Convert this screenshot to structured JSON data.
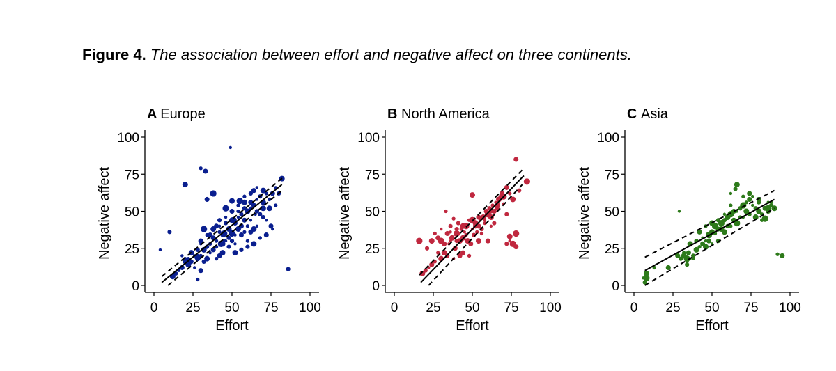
{
  "caption": {
    "label": "Figure 4.",
    "text": "The association between effort and negative affect on three continents."
  },
  "colors": {
    "Europe": "#0a1f8f",
    "North America": "#c0283f",
    "Asia": "#2d7a1a"
  },
  "chart_data": [
    {
      "type": "scatter",
      "panel_letter": "A",
      "title": "Europe",
      "xlabel": "Effort",
      "ylabel": "Negative affect",
      "xlim": [
        0,
        100
      ],
      "ylim": [
        0,
        100
      ],
      "xticks": [
        0,
        25,
        50,
        75,
        100
      ],
      "yticks": [
        0,
        25,
        50,
        75,
        100
      ],
      "fit_line": {
        "x": [
          5,
          82
        ],
        "y": [
          2,
          68
        ]
      },
      "ci_upper": {
        "x": [
          5,
          83
        ],
        "y": [
          6,
          73
        ]
      },
      "ci_lower": {
        "x": [
          9,
          82
        ],
        "y": [
          0,
          64
        ]
      },
      "points": [
        [
          4,
          24
        ],
        [
          10,
          36
        ],
        [
          20,
          68
        ],
        [
          30,
          79
        ],
        [
          33,
          77
        ],
        [
          49,
          93
        ],
        [
          86,
          11
        ],
        [
          82,
          72
        ],
        [
          38,
          62
        ],
        [
          34,
          58
        ],
        [
          32,
          39
        ],
        [
          46,
          52
        ],
        [
          50,
          57
        ],
        [
          58,
          60
        ],
        [
          62,
          56
        ],
        [
          65,
          48
        ],
        [
          58,
          52
        ],
        [
          55,
          57
        ],
        [
          42,
          36
        ],
        [
          40,
          40
        ],
        [
          45,
          30
        ],
        [
          44,
          34
        ],
        [
          48,
          38
        ],
        [
          50,
          36
        ],
        [
          52,
          42
        ],
        [
          54,
          46
        ],
        [
          56,
          48
        ],
        [
          60,
          50
        ],
        [
          62,
          52
        ],
        [
          64,
          54
        ],
        [
          66,
          58
        ],
        [
          68,
          60
        ],
        [
          70,
          52
        ],
        [
          72,
          62
        ],
        [
          75,
          40
        ],
        [
          72,
          44
        ],
        [
          68,
          48
        ],
        [
          64,
          38
        ],
        [
          60,
          30
        ],
        [
          56,
          34
        ],
        [
          52,
          28
        ],
        [
          48,
          26
        ],
        [
          44,
          28
        ],
        [
          40,
          30
        ],
        [
          38,
          24
        ],
        [
          36,
          22
        ],
        [
          34,
          26
        ],
        [
          32,
          24
        ],
        [
          30,
          20
        ],
        [
          28,
          18
        ],
        [
          26,
          20
        ],
        [
          24,
          16
        ],
        [
          22,
          14
        ],
        [
          20,
          18
        ],
        [
          18,
          12
        ],
        [
          16,
          10
        ],
        [
          14,
          8
        ],
        [
          12,
          6
        ],
        [
          28,
          4
        ],
        [
          30,
          10
        ],
        [
          26,
          12
        ],
        [
          32,
          16
        ],
        [
          34,
          18
        ],
        [
          36,
          28
        ],
        [
          38,
          32
        ],
        [
          42,
          40
        ],
        [
          46,
          42
        ],
        [
          50,
          44
        ],
        [
          54,
          50
        ],
        [
          58,
          44
        ],
        [
          62,
          44
        ],
        [
          66,
          50
        ],
        [
          70,
          56
        ],
        [
          74,
          58
        ],
        [
          76,
          62
        ],
        [
          78,
          66
        ],
        [
          80,
          62
        ],
        [
          70,
          64
        ],
        [
          60,
          40
        ],
        [
          56,
          40
        ],
        [
          52,
          34
        ],
        [
          48,
          32
        ],
        [
          44,
          22
        ],
        [
          40,
          26
        ],
        [
          36,
          34
        ],
        [
          30,
          28
        ],
        [
          28,
          24
        ],
        [
          24,
          22
        ],
        [
          22,
          18
        ],
        [
          20,
          16
        ],
        [
          18,
          20
        ],
        [
          60,
          26
        ],
        [
          64,
          28
        ],
        [
          68,
          32
        ],
        [
          72,
          34
        ],
        [
          76,
          38
        ],
        [
          56,
          24
        ],
        [
          52,
          22
        ],
        [
          40,
          18
        ],
        [
          42,
          20
        ],
        [
          46,
          30
        ],
        [
          50,
          30
        ],
        [
          54,
          38
        ],
        [
          58,
          36
        ],
        [
          62,
          36
        ],
        [
          66,
          40
        ],
        [
          70,
          46
        ],
        [
          74,
          52
        ],
        [
          78,
          54
        ],
        [
          64,
          64
        ],
        [
          66,
          66
        ],
        [
          62,
          62
        ],
        [
          58,
          56
        ],
        [
          54,
          54
        ],
        [
          50,
          50
        ],
        [
          46,
          46
        ],
        [
          42,
          44
        ],
        [
          38,
          38
        ],
        [
          34,
          34
        ],
        [
          30,
          30
        ]
      ],
      "big_points": [
        [
          32,
          38
        ],
        [
          46,
          52
        ],
        [
          38,
          62
        ],
        [
          51,
          44
        ],
        [
          45,
          35
        ],
        [
          28,
          19
        ],
        [
          22,
          15
        ],
        [
          55,
          57
        ],
        [
          43,
          28
        ],
        [
          50,
          35
        ]
      ]
    },
    {
      "type": "scatter",
      "panel_letter": "B",
      "title": "North America",
      "xlabel": "Effort",
      "ylabel": "Negative affect",
      "xlim": [
        0,
        100
      ],
      "ylim": [
        0,
        100
      ],
      "xticks": [
        0,
        25,
        50,
        75,
        100
      ],
      "yticks": [
        0,
        25,
        50,
        75,
        100
      ],
      "fit_line": {
        "x": [
          17,
          83
        ],
        "y": [
          2,
          74
        ]
      },
      "ci_upper": {
        "x": [
          16,
          83
        ],
        "y": [
          7,
          79
        ]
      },
      "ci_lower": {
        "x": [
          22,
          82
        ],
        "y": [
          0,
          68
        ]
      },
      "points": [
        [
          16,
          30
        ],
        [
          21,
          25
        ],
        [
          24,
          30
        ],
        [
          26,
          35
        ],
        [
          28,
          32
        ],
        [
          30,
          38
        ],
        [
          30,
          30
        ],
        [
          32,
          22
        ],
        [
          33,
          50
        ],
        [
          34,
          35
        ],
        [
          35,
          28
        ],
        [
          36,
          40
        ],
        [
          37,
          32
        ],
        [
          38,
          45
        ],
        [
          39,
          25
        ],
        [
          40,
          35
        ],
        [
          41,
          42
        ],
        [
          42,
          30
        ],
        [
          43,
          38
        ],
        [
          44,
          22
        ],
        [
          45,
          36
        ],
        [
          46,
          40
        ],
        [
          47,
          30
        ],
        [
          48,
          44
        ],
        [
          49,
          28
        ],
        [
          50,
          38
        ],
        [
          51,
          34
        ],
        [
          52,
          42
        ],
        [
          53,
          36
        ],
        [
          54,
          40
        ],
        [
          55,
          44
        ],
        [
          56,
          38
        ],
        [
          57,
          46
        ],
        [
          58,
          42
        ],
        [
          59,
          50
        ],
        [
          60,
          48
        ],
        [
          61,
          52
        ],
        [
          62,
          46
        ],
        [
          63,
          54
        ],
        [
          64,
          50
        ],
        [
          65,
          56
        ],
        [
          66,
          52
        ],
        [
          67,
          58
        ],
        [
          68,
          60
        ],
        [
          69,
          62
        ],
        [
          70,
          55
        ],
        [
          72,
          48
        ],
        [
          74,
          33
        ],
        [
          76,
          28
        ],
        [
          78,
          26
        ],
        [
          74,
          30
        ],
        [
          72,
          28
        ],
        [
          50,
          61
        ],
        [
          56,
          35
        ],
        [
          60,
          30
        ],
        [
          62,
          40
        ],
        [
          64,
          42
        ],
        [
          54,
          30
        ],
        [
          48,
          20
        ],
        [
          42,
          20
        ],
        [
          38,
          18
        ],
        [
          34,
          20
        ],
        [
          30,
          18
        ],
        [
          26,
          16
        ],
        [
          24,
          14
        ],
        [
          22,
          12
        ],
        [
          20,
          10
        ],
        [
          18,
          8
        ],
        [
          28,
          22
        ],
        [
          32,
          28
        ],
        [
          36,
          30
        ],
        [
          40,
          30
        ],
        [
          44,
          32
        ],
        [
          46,
          34
        ],
        [
          52,
          40
        ],
        [
          58,
          44
        ],
        [
          62,
          50
        ],
        [
          66,
          54
        ],
        [
          70,
          60
        ],
        [
          78,
          85
        ],
        [
          84,
          70
        ],
        [
          80,
          64
        ],
        [
          76,
          58
        ],
        [
          74,
          62
        ],
        [
          72,
          66
        ],
        [
          36,
          36
        ],
        [
          40,
          38
        ],
        [
          44,
          40
        ],
        [
          50,
          44
        ],
        [
          54,
          46
        ]
      ],
      "big_points": [
        [
          16,
          30
        ],
        [
          85,
          70
        ],
        [
          78,
          35
        ],
        [
          76,
          28
        ],
        [
          70,
          60
        ],
        [
          46,
          40
        ],
        [
          50,
          44
        ],
        [
          60,
          48
        ],
        [
          40,
          35
        ],
        [
          30,
          30
        ]
      ]
    },
    {
      "type": "scatter",
      "panel_letter": "C",
      "title": "Asia",
      "xlabel": "Effort",
      "ylabel": "Negative affect",
      "xlim": [
        0,
        100
      ],
      "ylim": [
        0,
        100
      ],
      "xticks": [
        0,
        25,
        50,
        75,
        100
      ],
      "yticks": [
        0,
        25,
        50,
        75,
        100
      ],
      "fit_line": {
        "x": [
          7,
          90
        ],
        "y": [
          10,
          58
        ]
      },
      "ci_upper": {
        "x": [
          7,
          90
        ],
        "y": [
          19,
          64
        ]
      },
      "ci_lower": {
        "x": [
          7,
          90
        ],
        "y": [
          0,
          52
        ]
      },
      "points": [
        [
          6,
          5
        ],
        [
          7,
          2
        ],
        [
          8,
          8
        ],
        [
          13,
          12
        ],
        [
          22,
          12
        ],
        [
          29,
          50
        ],
        [
          30,
          18
        ],
        [
          32,
          20
        ],
        [
          34,
          16
        ],
        [
          35,
          22
        ],
        [
          36,
          18
        ],
        [
          38,
          20
        ],
        [
          40,
          24
        ],
        [
          42,
          26
        ],
        [
          44,
          28
        ],
        [
          46,
          30
        ],
        [
          48,
          34
        ],
        [
          50,
          36
        ],
        [
          52,
          40
        ],
        [
          54,
          38
        ],
        [
          56,
          42
        ],
        [
          58,
          44
        ],
        [
          60,
          46
        ],
        [
          62,
          48
        ],
        [
          64,
          44
        ],
        [
          66,
          50
        ],
        [
          68,
          52
        ],
        [
          70,
          54
        ],
        [
          72,
          56
        ],
        [
          74,
          58
        ],
        [
          76,
          54
        ],
        [
          78,
          52
        ],
        [
          80,
          50
        ],
        [
          82,
          48
        ],
        [
          84,
          52
        ],
        [
          86,
          56
        ],
        [
          88,
          54
        ],
        [
          90,
          52
        ],
        [
          92,
          21
        ],
        [
          95,
          20
        ],
        [
          62,
          62
        ],
        [
          65,
          65
        ],
        [
          66,
          68
        ],
        [
          70,
          60
        ],
        [
          74,
          62
        ],
        [
          76,
          60
        ],
        [
          60,
          40
        ],
        [
          56,
          38
        ],
        [
          52,
          35
        ],
        [
          48,
          30
        ],
        [
          44,
          32
        ],
        [
          40,
          30
        ],
        [
          36,
          28
        ],
        [
          32,
          22
        ],
        [
          28,
          20
        ],
        [
          50,
          28
        ],
        [
          54,
          30
        ],
        [
          58,
          36
        ],
        [
          62,
          40
        ],
        [
          66,
          42
        ],
        [
          70,
          46
        ],
        [
          74,
          48
        ],
        [
          78,
          46
        ],
        [
          82,
          44
        ],
        [
          86,
          50
        ],
        [
          88,
          56
        ],
        [
          80,
          56
        ],
        [
          72,
          50
        ],
        [
          68,
          46
        ],
        [
          64,
          50
        ],
        [
          58,
          48
        ],
        [
          54,
          44
        ],
        [
          50,
          42
        ],
        [
          46,
          40
        ],
        [
          42,
          36
        ],
        [
          38,
          18
        ],
        [
          34,
          14
        ],
        [
          46,
          26
        ],
        [
          62,
          54
        ],
        [
          80,
          58
        ]
      ],
      "big_points": [
        [
          8,
          5
        ],
        [
          52,
          40
        ],
        [
          66,
          42
        ],
        [
          84,
          45
        ],
        [
          86,
          52
        ],
        [
          62,
          48
        ],
        [
          48,
          34
        ],
        [
          34,
          18
        ],
        [
          70,
          54
        ],
        [
          56,
          42
        ]
      ]
    }
  ]
}
